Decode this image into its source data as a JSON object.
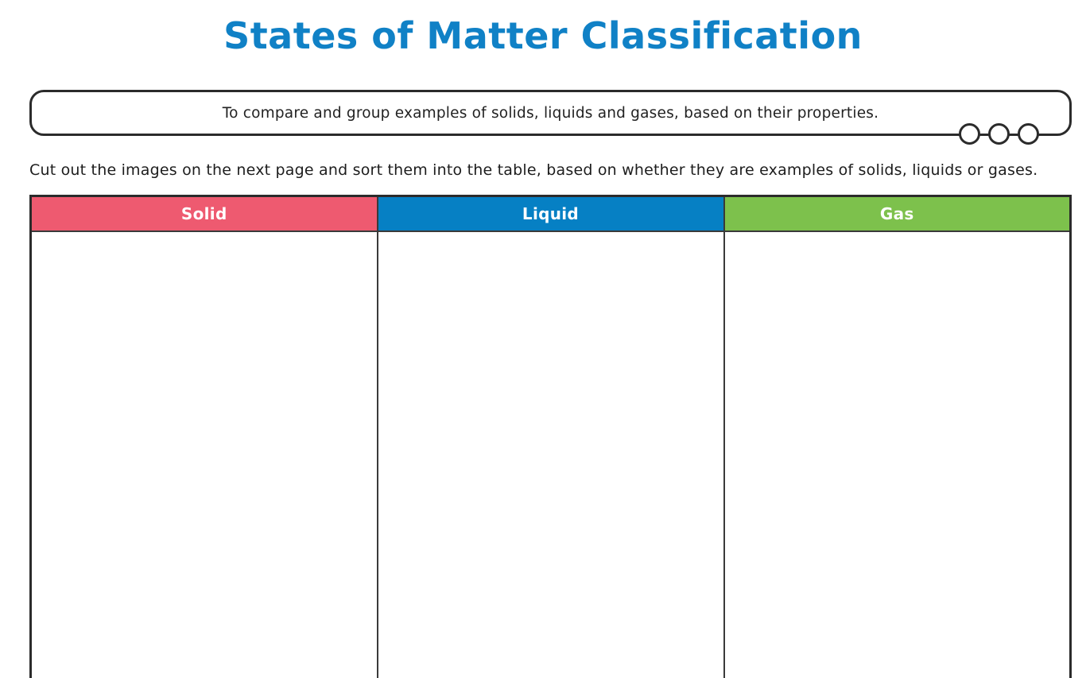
{
  "page": {
    "title": "States of Matter Classification",
    "objective": "To compare and group examples of solids, liquids and gases, based on their properties.",
    "instruction": "Cut out the images on the next page and sort them into the table, based on whether they are examples of solids, liquids or gases."
  },
  "table": {
    "columns": [
      {
        "label": "Solid",
        "color": "#ee5a70"
      },
      {
        "label": "Liquid",
        "color": "#0680c4"
      },
      {
        "label": "Gas",
        "color": "#7dc14c"
      }
    ]
  },
  "colors": {
    "title_blue": "#1081c6",
    "border_dark": "#2b2b2b"
  },
  "decor": {
    "ring_count": 3
  }
}
